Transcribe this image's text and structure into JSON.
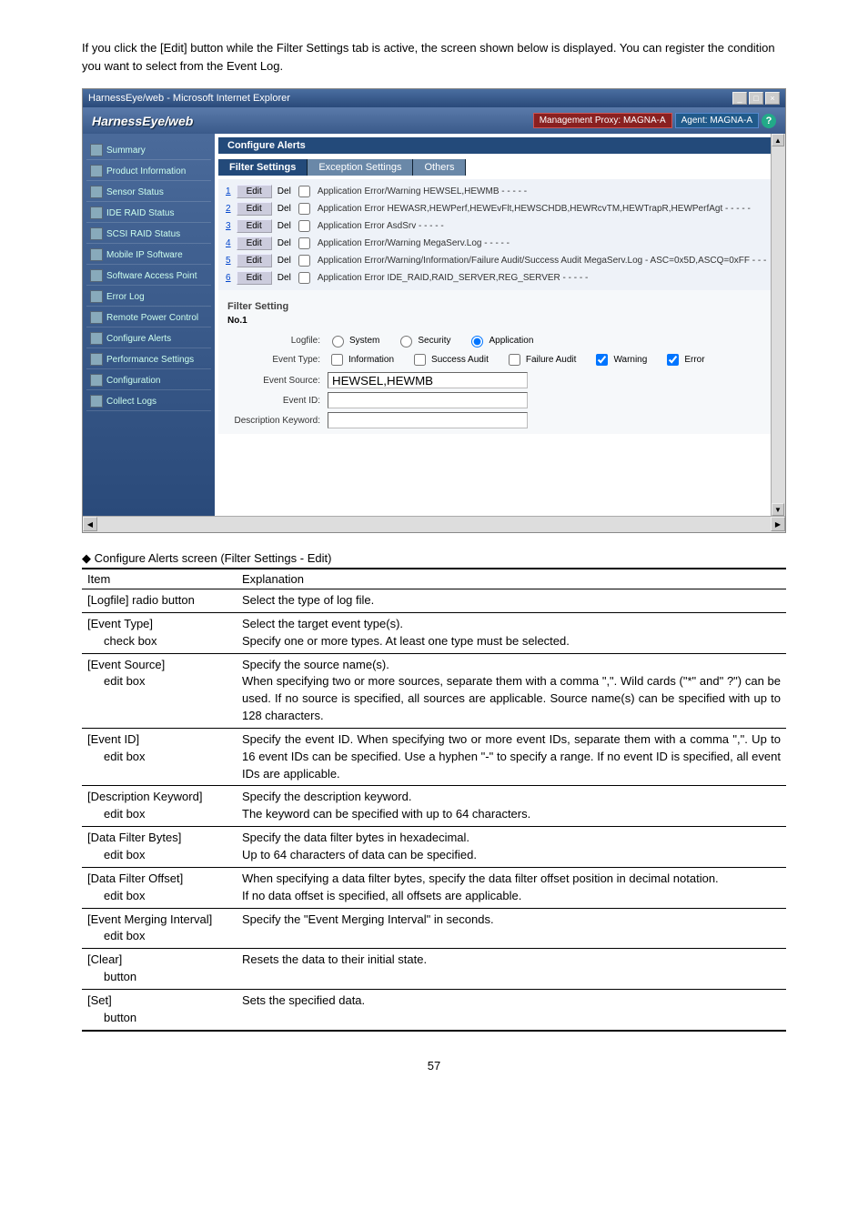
{
  "intro": "If you click the [Edit] button while the Filter Settings tab is active, the screen shown below is displayed. You can register the condition you want to select from the Event Log.",
  "screenshot": {
    "window_title": "HarnessEye/web - Microsoft Internet Explorer",
    "brand": "HarnessEye/web",
    "proxy": "Management Proxy: MAGNA-A",
    "agent": "Agent: MAGNA-A",
    "help": "?",
    "sidebar": [
      "Summary",
      "Product Information",
      "Sensor Status",
      "IDE RAID Status",
      "SCSI RAID Status",
      "Mobile IP Software",
      "Software Access Point",
      "Error Log",
      "Remote Power Control",
      "Configure Alerts",
      "Performance Settings",
      "Configuration",
      "Collect Logs"
    ],
    "section": "Configure Alerts",
    "tabs": {
      "active": "Filter Settings",
      "others": [
        "Exception Settings",
        "Others"
      ]
    },
    "rows": [
      {
        "n": "1",
        "desc": "Application Error/Warning HEWSEL,HEWMB - - - - -"
      },
      {
        "n": "2",
        "desc": "Application Error HEWASR,HEWPerf,HEWEvFlt,HEWSCHDB,HEWRcvTM,HEWTrapR,HEWPerfAgt - - - - -"
      },
      {
        "n": "3",
        "desc": "Application Error AsdSrv - - - - -"
      },
      {
        "n": "4",
        "desc": "Application Error/Warning MegaServ.Log - - - - -"
      },
      {
        "n": "5",
        "desc": "Application Error/Warning/Information/Failure Audit/Success Audit MegaServ.Log - ASC=0x5D,ASCQ=0xFF - - -"
      },
      {
        "n": "6",
        "desc": "Application Error IDE_RAID,RAID_SERVER,REG_SERVER - - - - -"
      }
    ],
    "edit_label": "Edit",
    "del_label": "Del",
    "filter_title": "Filter Setting",
    "no_label": "No.1",
    "form": {
      "logfile": "Logfile:",
      "logfile_opts": [
        "System",
        "Security",
        "Application"
      ],
      "logfile_sel": "Application",
      "event_type": "Event Type:",
      "event_type_opts": [
        "Information",
        "Success Audit",
        "Failure Audit",
        "Warning",
        "Error"
      ],
      "event_type_checked": [
        "Warning",
        "Error"
      ],
      "event_source": "Event Source:",
      "event_source_val": "HEWSEL,HEWMB",
      "event_id": "Event ID:",
      "desc_keyword": "Description Keyword:"
    }
  },
  "spec_title": "Configure Alerts screen (Filter Settings - Edit)",
  "spec": {
    "head": [
      "Item",
      "Explanation"
    ],
    "rows": [
      {
        "item": "[Logfile] radio button",
        "exp": "Select the type of log file."
      },
      {
        "item": "[Event Type] check box",
        "exp": "Select the target event type(s).\nSpecify one or more types.    At least one type must be selected."
      },
      {
        "item": "[Event Source] edit box",
        "exp": "Specify the source name(s).\nWhen specifying two or more sources, separate them with a comma \",\".  Wild cards (\"*\" and\" ?\") can be used.  If no source is specified, all sources are applicable.  Source name(s) can be specified with up to 128 characters."
      },
      {
        "item": "[Event ID] edit box",
        "exp": "Specify the event ID. When specifying two or more event IDs, separate them with a comma \",\".  Up to 16 event IDs can be specified. Use a hyphen \"-\" to specify a range.  If no event ID is specified, all event IDs are applicable."
      },
      {
        "item": "[Description Keyword] edit box",
        "exp": "Specify the description keyword.\nThe keyword can be specified with up to 64 characters."
      },
      {
        "item": "[Data Filter Bytes] edit box",
        "exp": "Specify the data filter bytes in hexadecimal.\nUp to 64 characters of data can be specified."
      },
      {
        "item": "[Data Filter Offset] edit box",
        "exp": "When specifying a data filter bytes, specify the data filter offset position in decimal notation.\nIf no data offset is specified, all offsets are applicable."
      },
      {
        "item": "[Event Merging Interval] edit box",
        "exp": "Specify the \"Event Merging Interval\" in seconds."
      },
      {
        "item": "[Clear] button",
        "exp": "Resets the data to their initial state."
      },
      {
        "item": "[Set] button",
        "exp": "Sets the specified data."
      }
    ]
  },
  "pagenum": "57"
}
